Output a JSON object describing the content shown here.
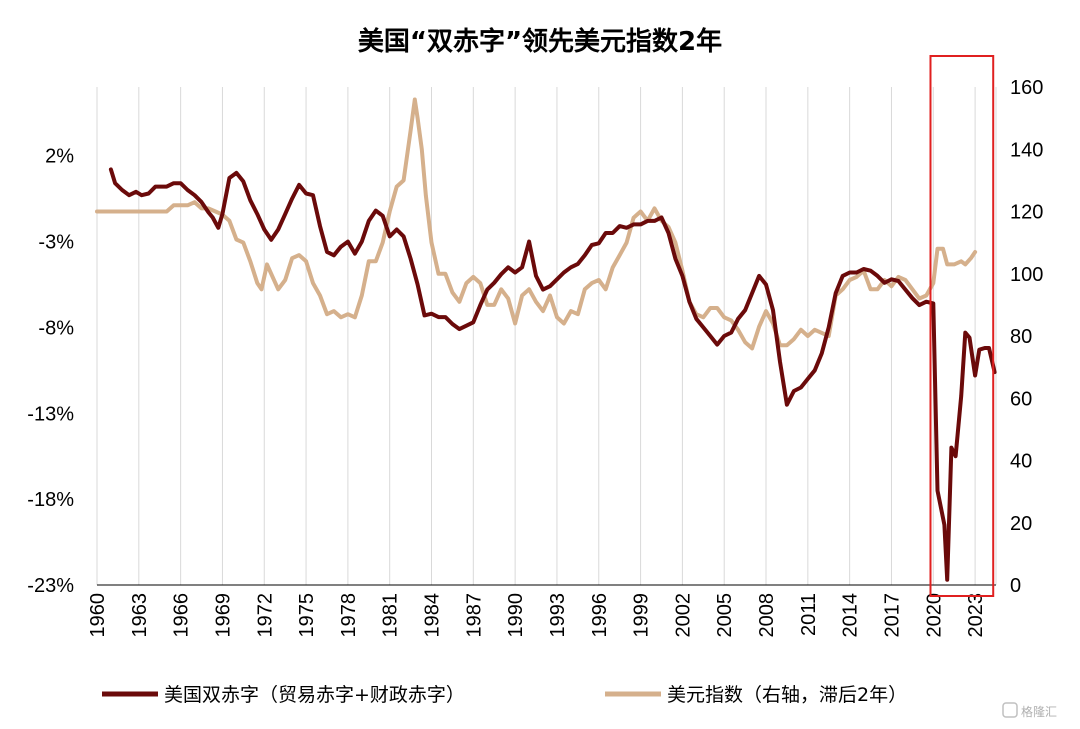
{
  "chart_data": {
    "type": "line",
    "title": "美国“双赤字”领先美元指数2年",
    "x_tick_labels": [
      "1960",
      "1963",
      "1966",
      "1969",
      "1972",
      "1975",
      "1978",
      "1981",
      "1984",
      "1987",
      "1990",
      "1993",
      "1996",
      "1999",
      "2002",
      "2005",
      "2008",
      "2011",
      "2014",
      "2017",
      "2020",
      "2023"
    ],
    "xlim": [
      1960,
      2024.5
    ],
    "left_axis": {
      "tick_labels": [
        "2%",
        "-3%",
        "-8%",
        "-13%",
        "-18%",
        "-23%"
      ],
      "ticks": [
        2,
        -3,
        -8,
        -13,
        -18,
        -23
      ],
      "ylim": [
        -23,
        6
      ]
    },
    "right_axis": {
      "tick_labels": [
        "160",
        "140",
        "120",
        "100",
        "80",
        "60",
        "40",
        "20",
        "0"
      ],
      "ticks": [
        160,
        140,
        120,
        100,
        80,
        60,
        40,
        20,
        0
      ],
      "ylim": [
        0,
        160
      ]
    },
    "grid": "vertical",
    "legend_position": "bottom",
    "highlight_box": {
      "x_range": [
        2019.8,
        2024.3
      ],
      "color": "#e02020"
    },
    "series": [
      {
        "name": "美国双赤字（贸易赤字+财政赤字）",
        "axis": "left",
        "color": "#6b0a0a",
        "points": [
          [
            1961,
            1.2
          ],
          [
            1961.3,
            0.4
          ],
          [
            1961.8,
            0
          ],
          [
            1962.3,
            -0.3
          ],
          [
            1962.8,
            -0.1
          ],
          [
            1963.2,
            -0.3
          ],
          [
            1963.7,
            -0.2
          ],
          [
            1964.2,
            0.2
          ],
          [
            1964.6,
            0.2
          ],
          [
            1965,
            0.2
          ],
          [
            1965.5,
            0.4
          ],
          [
            1966,
            0.4
          ],
          [
            1966.5,
            0
          ],
          [
            1967,
            -0.3
          ],
          [
            1967.5,
            -0.7
          ],
          [
            1968,
            -1.3
          ],
          [
            1968.3,
            -1.6
          ],
          [
            1968.7,
            -2.2
          ],
          [
            1969,
            -1.4
          ],
          [
            1969.5,
            0.7
          ],
          [
            1970,
            1
          ],
          [
            1970.5,
            0.5
          ],
          [
            1971,
            -0.6
          ],
          [
            1971.5,
            -1.4
          ],
          [
            1972,
            -2.3
          ],
          [
            1972.5,
            -2.9
          ],
          [
            1973,
            -2.3
          ],
          [
            1973.5,
            -1.4
          ],
          [
            1974,
            -0.5
          ],
          [
            1974.5,
            0.3
          ],
          [
            1975,
            -0.2
          ],
          [
            1975.5,
            -0.3
          ],
          [
            1976,
            -2.1
          ],
          [
            1976.5,
            -3.6
          ],
          [
            1977,
            -3.8
          ],
          [
            1977.5,
            -3.3
          ],
          [
            1978,
            -3.0
          ],
          [
            1978.5,
            -3.7
          ],
          [
            1979,
            -3.0
          ],
          [
            1979.5,
            -1.8
          ],
          [
            1980,
            -1.2
          ],
          [
            1980.5,
            -1.5
          ],
          [
            1981,
            -2.7
          ],
          [
            1981.5,
            -2.3
          ],
          [
            1982,
            -2.7
          ],
          [
            1982.5,
            -4.0
          ],
          [
            1983,
            -5.5
          ],
          [
            1983.5,
            -7.3
          ],
          [
            1984,
            -7.2
          ],
          [
            1984.5,
            -7.4
          ],
          [
            1985,
            -7.4
          ],
          [
            1985.5,
            -7.8
          ],
          [
            1986,
            -8.1
          ],
          [
            1986.5,
            -7.9
          ],
          [
            1987,
            -7.7
          ],
          [
            1987.5,
            -6.7
          ],
          [
            1988,
            -5.8
          ],
          [
            1988.5,
            -5.4
          ],
          [
            1989,
            -4.9
          ],
          [
            1989.5,
            -4.5
          ],
          [
            1990,
            -4.8
          ],
          [
            1990.5,
            -4.5
          ],
          [
            1991,
            -3.0
          ],
          [
            1991.5,
            -5.0
          ],
          [
            1992,
            -5.8
          ],
          [
            1992.5,
            -5.6
          ],
          [
            1993,
            -5.2
          ],
          [
            1993.5,
            -4.8
          ],
          [
            1994,
            -4.5
          ],
          [
            1994.5,
            -4.3
          ],
          [
            1995,
            -3.8
          ],
          [
            1995.5,
            -3.2
          ],
          [
            1996,
            -3.1
          ],
          [
            1996.5,
            -2.5
          ],
          [
            1997,
            -2.5
          ],
          [
            1997.5,
            -2.1
          ],
          [
            1998,
            -2.2
          ],
          [
            1998.5,
            -2.0
          ],
          [
            1999,
            -2.0
          ],
          [
            1999.5,
            -1.8
          ],
          [
            2000,
            -1.8
          ],
          [
            2000.5,
            -1.6
          ],
          [
            2001,
            -2.5
          ],
          [
            2001.5,
            -4.0
          ],
          [
            2002,
            -5.0
          ],
          [
            2002.5,
            -6.5
          ],
          [
            2003,
            -7.5
          ],
          [
            2003.5,
            -8.0
          ],
          [
            2004,
            -8.5
          ],
          [
            2004.5,
            -9.0
          ],
          [
            2005,
            -8.5
          ],
          [
            2005.5,
            -8.3
          ],
          [
            2006,
            -7.5
          ],
          [
            2006.5,
            -7.0
          ],
          [
            2007,
            -6.0
          ],
          [
            2007.5,
            -5.0
          ],
          [
            2008,
            -5.5
          ],
          [
            2008.5,
            -7.0
          ],
          [
            2009,
            -10.0
          ],
          [
            2009.5,
            -12.5
          ],
          [
            2010,
            -11.7
          ],
          [
            2010.5,
            -11.5
          ],
          [
            2011,
            -11.0
          ],
          [
            2011.5,
            -10.5
          ],
          [
            2012,
            -9.5
          ],
          [
            2012.5,
            -8.0
          ],
          [
            2013,
            -6.0
          ],
          [
            2013.5,
            -5.0
          ],
          [
            2014,
            -4.8
          ],
          [
            2014.5,
            -4.8
          ],
          [
            2015,
            -4.6
          ],
          [
            2015.5,
            -4.7
          ],
          [
            2016,
            -5.0
          ],
          [
            2016.5,
            -5.4
          ],
          [
            2017,
            -5.2
          ],
          [
            2017.5,
            -5.3
          ],
          [
            2018,
            -5.8
          ],
          [
            2018.5,
            -6.3
          ],
          [
            2019,
            -6.7
          ],
          [
            2019.5,
            -6.5
          ],
          [
            2020,
            -6.6
          ],
          [
            2020.3,
            -17.5
          ],
          [
            2020.8,
            -19.5
          ],
          [
            2021,
            -22.7
          ],
          [
            2021.3,
            -15.0
          ],
          [
            2021.6,
            -15.5
          ],
          [
            2022,
            -12.0
          ],
          [
            2022.3,
            -8.3
          ],
          [
            2022.6,
            -8.6
          ],
          [
            2023,
            -10.8
          ],
          [
            2023.3,
            -9.3
          ],
          [
            2023.7,
            -9.2
          ],
          [
            2024,
            -9.2
          ],
          [
            2024.4,
            -10.6
          ]
        ]
      },
      {
        "name": "美元指数（右轴，滞后2年）",
        "axis": "right",
        "color": "#d5b08c",
        "points": [
          [
            1960,
            120
          ],
          [
            1961,
            120
          ],
          [
            1962,
            120
          ],
          [
            1963,
            120
          ],
          [
            1964,
            120
          ],
          [
            1965,
            120
          ],
          [
            1965.5,
            122
          ],
          [
            1966.5,
            122
          ],
          [
            1967,
            123
          ],
          [
            1967.5,
            121
          ],
          [
            1968,
            121
          ],
          [
            1968.5,
            120
          ],
          [
            1969,
            119
          ],
          [
            1969.5,
            117
          ],
          [
            1970,
            111
          ],
          [
            1970.5,
            110
          ],
          [
            1971,
            104
          ],
          [
            1971.5,
            97
          ],
          [
            1971.8,
            95
          ],
          [
            1972.2,
            103
          ],
          [
            1972.5,
            100
          ],
          [
            1973,
            95
          ],
          [
            1973.5,
            98
          ],
          [
            1974,
            105
          ],
          [
            1974.5,
            106
          ],
          [
            1975,
            104
          ],
          [
            1975.5,
            97
          ],
          [
            1976,
            93
          ],
          [
            1976.5,
            87
          ],
          [
            1977,
            88
          ],
          [
            1977.5,
            86
          ],
          [
            1978,
            87
          ],
          [
            1978.5,
            86
          ],
          [
            1979,
            93
          ],
          [
            1979.5,
            104
          ],
          [
            1980,
            104
          ],
          [
            1980.5,
            110
          ],
          [
            1981,
            120
          ],
          [
            1981.5,
            128
          ],
          [
            1982,
            130
          ],
          [
            1982.5,
            146
          ],
          [
            1982.8,
            156
          ],
          [
            1983,
            150
          ],
          [
            1983.3,
            140
          ],
          [
            1983.6,
            125
          ],
          [
            1984,
            110
          ],
          [
            1984.5,
            100
          ],
          [
            1985,
            100
          ],
          [
            1985.5,
            94
          ],
          [
            1986,
            91
          ],
          [
            1986.5,
            97
          ],
          [
            1987,
            99
          ],
          [
            1987.5,
            97
          ],
          [
            1988,
            90
          ],
          [
            1988.5,
            90
          ],
          [
            1989,
            95
          ],
          [
            1989.5,
            92
          ],
          [
            1990,
            84
          ],
          [
            1990.5,
            93
          ],
          [
            1991,
            95
          ],
          [
            1991.5,
            91
          ],
          [
            1992,
            88
          ],
          [
            1992.5,
            93
          ],
          [
            1993,
            86
          ],
          [
            1993.5,
            84
          ],
          [
            1994,
            88
          ],
          [
            1994.5,
            87
          ],
          [
            1995,
            95
          ],
          [
            1995.5,
            97
          ],
          [
            1996,
            98
          ],
          [
            1996.5,
            95
          ],
          [
            1997,
            102
          ],
          [
            1997.5,
            106
          ],
          [
            1998,
            110
          ],
          [
            1998.5,
            118
          ],
          [
            1999,
            120
          ],
          [
            1999.5,
            117
          ],
          [
            2000,
            121
          ],
          [
            2000.5,
            117
          ],
          [
            2001,
            115
          ],
          [
            2001.5,
            110
          ],
          [
            2002,
            101
          ],
          [
            2002.5,
            91
          ],
          [
            2003,
            87
          ],
          [
            2003.5,
            86
          ],
          [
            2004,
            89
          ],
          [
            2004.5,
            89
          ],
          [
            2005,
            86
          ],
          [
            2005.5,
            85
          ],
          [
            2006,
            82
          ],
          [
            2006.5,
            78
          ],
          [
            2007,
            76
          ],
          [
            2007.5,
            83
          ],
          [
            2008,
            88
          ],
          [
            2008.5,
            84
          ],
          [
            2009,
            77
          ],
          [
            2009.5,
            77
          ],
          [
            2010,
            79
          ],
          [
            2010.5,
            82
          ],
          [
            2011,
            80
          ],
          [
            2011.5,
            82
          ],
          [
            2012,
            81
          ],
          [
            2012.5,
            80
          ],
          [
            2013,
            93
          ],
          [
            2013.5,
            95
          ],
          [
            2014,
            98
          ],
          [
            2014.5,
            99
          ],
          [
            2015,
            101
          ],
          [
            2015.5,
            95
          ],
          [
            2016,
            95
          ],
          [
            2016.5,
            98
          ],
          [
            2017,
            96
          ],
          [
            2017.5,
            99
          ],
          [
            2018,
            98
          ],
          [
            2018.5,
            95
          ],
          [
            2019,
            92
          ],
          [
            2019.5,
            93
          ],
          [
            2020,
            97
          ],
          [
            2020.3,
            108
          ],
          [
            2020.7,
            108
          ],
          [
            2021,
            103
          ],
          [
            2021.5,
            103
          ],
          [
            2022,
            104
          ],
          [
            2022.3,
            103
          ],
          [
            2022.7,
            105
          ],
          [
            2023,
            107
          ]
        ]
      }
    ]
  },
  "watermark": "格隆汇"
}
